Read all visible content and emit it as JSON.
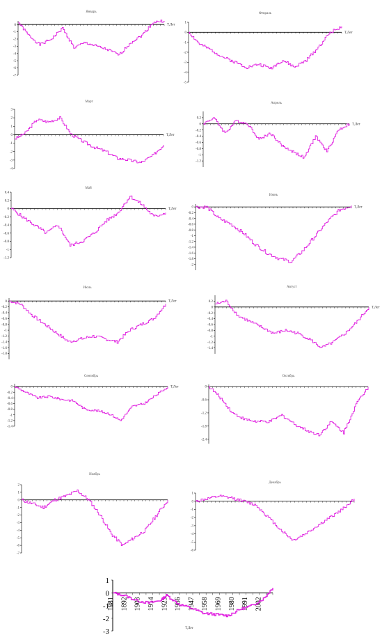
{
  "figure": {
    "line_color": "#e020e0",
    "axis_color": "#000000",
    "x_axis_label_monthly": "T,Лет",
    "x_axis_label_annual": "T,Лет"
  },
  "chart_data": [
    {
      "type": "line",
      "title": "Январь",
      "xlabel": "T,Лет",
      "ylim": [
        -7,
        0.5
      ],
      "yticks": [
        0,
        -1,
        -2,
        -3,
        -4,
        -5,
        -6,
        -7
      ],
      "xticks": [],
      "x": [
        1881,
        1890,
        1900,
        1910,
        1920,
        1930,
        1940,
        1950,
        1960,
        1970,
        1980,
        1990,
        2000,
        2010
      ],
      "series": [
        {
          "values": [
            0.3,
            -1.5,
            -2.8,
            -2.0,
            -0.5,
            -3.2,
            -2.5,
            -3.0,
            -3.5,
            -4.2,
            -2.5,
            -1.5,
            0.3,
            0.5
          ]
        }
      ]
    },
    {
      "type": "line",
      "title": "Февраль",
      "xlabel": "T,Лет",
      "ylim": [
        -5,
        1
      ],
      "yticks": [
        1,
        0,
        -1,
        -2,
        -3,
        -4,
        -5
      ],
      "xticks": [],
      "x": [
        1881,
        1890,
        1900,
        1910,
        1920,
        1930,
        1940,
        1950,
        1960,
        1970,
        1980,
        1990,
        2000,
        2010
      ],
      "series": [
        {
          "values": [
            0.0,
            -1.2,
            -1.8,
            -2.5,
            -3.0,
            -3.5,
            -3.2,
            -3.6,
            -2.8,
            -3.5,
            -2.8,
            -1.5,
            0.0,
            0.6
          ]
        }
      ]
    },
    {
      "type": "line",
      "title": "Март",
      "xlabel": "T,Лет",
      "ylim": [
        -4,
        3
      ],
      "yticks": [
        3,
        2,
        1,
        0,
        -1,
        -2,
        -3,
        -4
      ],
      "xticks": [],
      "x": [
        1881,
        1890,
        1900,
        1910,
        1920,
        1930,
        1940,
        1950,
        1960,
        1970,
        1980,
        1990,
        2000,
        2010
      ],
      "series": [
        {
          "values": [
            -0.5,
            0.2,
            1.8,
            1.5,
            2.0,
            0.0,
            -0.8,
            -1.5,
            -2.0,
            -2.8,
            -3.0,
            -3.3,
            -2.5,
            -1.2
          ]
        }
      ]
    },
    {
      "type": "line",
      "title": "Апрель",
      "xlabel": "T,Лет",
      "ylim": [
        -1.4,
        0.4
      ],
      "yticks": [
        0.2,
        0,
        -0.2,
        -0.4,
        -0.6,
        -0.8,
        -1,
        -1.2
      ],
      "xticks": [],
      "x": [
        1881,
        1890,
        1900,
        1910,
        1920,
        1930,
        1940,
        1950,
        1960,
        1970,
        1980,
        1990,
        2000,
        2010
      ],
      "series": [
        {
          "values": [
            0.0,
            0.2,
            -0.3,
            0.1,
            0.0,
            -0.5,
            -0.3,
            -0.7,
            -0.9,
            -1.1,
            -0.4,
            -0.9,
            -0.2,
            0.0
          ]
        }
      ]
    },
    {
      "type": "line",
      "title": "Май",
      "xlabel": "T,Лет",
      "ylim": [
        -1.2,
        0.4
      ],
      "yticks": [
        0.4,
        0.2,
        0,
        -0.2,
        -0.4,
        -0.6,
        -0.8,
        -1,
        -1.2
      ],
      "xticks": [],
      "x": [
        1881,
        1890,
        1900,
        1910,
        1920,
        1930,
        1940,
        1950,
        1960,
        1970,
        1980,
        1990,
        2000,
        2010
      ],
      "series": [
        {
          "values": [
            0.0,
            -0.2,
            -0.4,
            -0.6,
            -0.4,
            -0.9,
            -0.8,
            -0.6,
            -0.3,
            -0.1,
            0.3,
            0.1,
            -0.2,
            -0.1
          ]
        }
      ]
    },
    {
      "type": "line",
      "title": "Июнь",
      "xlabel": "T,Лет",
      "ylim": [
        -2.2,
        0.1
      ],
      "yticks": [
        0,
        -0.2,
        -0.4,
        -0.6,
        -0.8,
        -1,
        -1.2,
        -1.4,
        -1.6,
        -1.8,
        -2
      ],
      "xticks": [],
      "x": [
        1881,
        1890,
        1900,
        1910,
        1920,
        1930,
        1940,
        1950,
        1960,
        1970,
        1980,
        1990,
        2000,
        2010
      ],
      "series": [
        {
          "values": [
            0.0,
            0.0,
            -0.4,
            -0.6,
            -0.9,
            -1.3,
            -1.6,
            -1.8,
            -1.9,
            -1.5,
            -1.0,
            -0.5,
            -0.1,
            0.05
          ]
        }
      ]
    },
    {
      "type": "line",
      "title": "Июль",
      "xlabel": "T,Лет",
      "ylim": [
        -2.0,
        0.1
      ],
      "yticks": [
        0,
        -0.2,
        -0.4,
        -0.6,
        -0.8,
        -1,
        -1.2,
        -1.4,
        -1.6,
        -1.8
      ],
      "xticks": [],
      "x": [
        1881,
        1890,
        1900,
        1910,
        1920,
        1930,
        1940,
        1950,
        1960,
        1970,
        1980,
        1990,
        2000,
        2010
      ],
      "series": [
        {
          "values": [
            0.0,
            -0.1,
            -0.5,
            -0.8,
            -1.1,
            -1.4,
            -1.3,
            -1.2,
            -1.3,
            -1.4,
            -1.0,
            -0.8,
            -0.6,
            -0.1
          ]
        }
      ]
    },
    {
      "type": "line",
      "title": "Август",
      "xlabel": "T,Лет",
      "ylim": [
        -1.6,
        0.4
      ],
      "yticks": [
        0.2,
        0,
        -0.2,
        -0.4,
        -0.6,
        -0.8,
        -1,
        -1.2,
        -1.4
      ],
      "xticks": [],
      "x": [
        1881,
        1890,
        1900,
        1910,
        1920,
        1930,
        1940,
        1950,
        1960,
        1970,
        1980,
        1990,
        2000,
        2010
      ],
      "series": [
        {
          "values": [
            0.1,
            0.2,
            -0.3,
            -0.5,
            -0.7,
            -0.9,
            -0.8,
            -0.9,
            -1.1,
            -1.4,
            -1.2,
            -0.9,
            -0.5,
            0.0
          ]
        }
      ]
    },
    {
      "type": "line",
      "title": "Сентябрь",
      "xlabel": "T,Лет",
      "ylim": [
        -1.4,
        0.1
      ],
      "yticks": [
        0,
        -0.2,
        -0.4,
        -0.6,
        -0.8,
        -1,
        -1.2,
        -1.4
      ],
      "xticks": [],
      "x": [
        1881,
        1890,
        1900,
        1910,
        1920,
        1930,
        1940,
        1950,
        1960,
        1970,
        1980,
        1990,
        2000,
        2010
      ],
      "series": [
        {
          "values": [
            0.0,
            -0.2,
            -0.4,
            -0.35,
            -0.45,
            -0.5,
            -0.8,
            -0.85,
            -0.95,
            -1.2,
            -0.7,
            -0.6,
            -0.3,
            0.0
          ]
        }
      ]
    },
    {
      "type": "line",
      "title": "Октябрь",
      "xlabel": "",
      "ylim": [
        -2.6,
        0.1
      ],
      "yticks": [
        0,
        -0.6,
        -1.2,
        -1.8,
        -2.4
      ],
      "xticks": [],
      "x": [
        1881,
        1890,
        1900,
        1910,
        1920,
        1930,
        1940,
        1950,
        1960,
        1970,
        1980,
        1990,
        2000,
        2010
      ],
      "series": [
        {
          "values": [
            0.0,
            -0.5,
            -1.2,
            -1.5,
            -1.6,
            -1.6,
            -1.3,
            -1.7,
            -2.0,
            -2.2,
            -1.6,
            -2.1,
            -0.8,
            0.0
          ]
        }
      ]
    },
    {
      "type": "line",
      "title": "Ноябрь",
      "xlabel": "",
      "ylim": [
        -7,
        2
      ],
      "yticks": [
        2,
        1,
        0,
        -1,
        -2,
        -3,
        -4,
        -5,
        -6,
        -7
      ],
      "xticks": [],
      "x": [
        1881,
        1890,
        1900,
        1910,
        1920,
        1930,
        1940,
        1950,
        1960,
        1970,
        1980,
        1990,
        2000,
        2010
      ],
      "series": [
        {
          "values": [
            0.0,
            -0.5,
            -1.0,
            0.0,
            0.5,
            1.2,
            0.0,
            -2.0,
            -4.5,
            -6.0,
            -5.0,
            -4.0,
            -2.0,
            0.0
          ]
        }
      ]
    },
    {
      "type": "line",
      "title": "Декабрь",
      "xlabel": "",
      "ylim": [
        -6,
        1
      ],
      "yticks": [
        1,
        0,
        -1,
        -2,
        -3,
        -4,
        -5,
        -6
      ],
      "xticks": [],
      "x": [
        1881,
        1890,
        1900,
        1910,
        1920,
        1930,
        1940,
        1950,
        1960,
        1970,
        1980,
        1990,
        2000,
        2010
      ],
      "series": [
        {
          "values": [
            0.0,
            0.3,
            0.6,
            0.4,
            0.0,
            -0.5,
            -2.0,
            -3.5,
            -4.8,
            -4.0,
            -3.0,
            -2.0,
            -1.0,
            0.3
          ]
        }
      ]
    },
    {
      "type": "line",
      "title": "",
      "xlabel": "T,Лет",
      "ylim": [
        -3,
        1
      ],
      "yticks": [
        1,
        0,
        -1,
        -2,
        -3
      ],
      "xticks": [
        "1881",
        "1892",
        "1903",
        "1914",
        "1925",
        "1936",
        "1947",
        "1958",
        "1969",
        "1980",
        "1991",
        "2002"
      ],
      "x": [
        1881,
        1890,
        1900,
        1910,
        1920,
        1925,
        1935,
        1945,
        1955,
        1965,
        1975,
        1985,
        1995,
        2005,
        2012
      ],
      "series": [
        {
          "values": [
            0.0,
            -0.2,
            -0.6,
            -0.8,
            -0.6,
            -0.2,
            -0.9,
            -1.2,
            -1.6,
            -1.7,
            -1.8,
            -1.3,
            -1.0,
            -0.4,
            0.4
          ]
        }
      ]
    }
  ]
}
